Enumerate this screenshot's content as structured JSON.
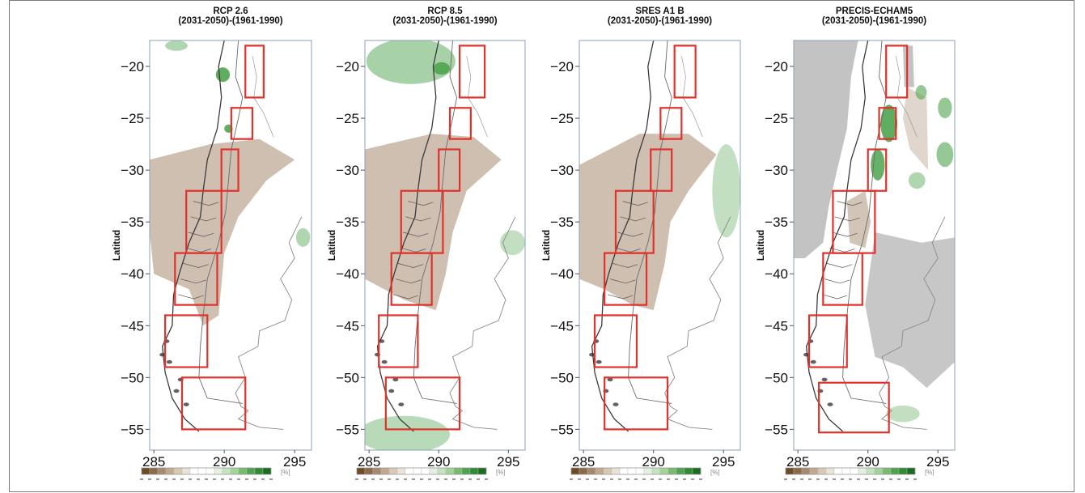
{
  "ylabel": "Latitud",
  "yticks": [
    -20,
    -25,
    -30,
    -35,
    -40,
    -45,
    -50,
    -55
  ],
  "xticks": [
    285,
    290,
    295
  ],
  "colorbar_unit": "[%]",
  "colors": {
    "dry": "#a58a6f",
    "wet": "#4fa34f",
    "box": "#e0312b",
    "land_outline": "#6b6b6b",
    "axis_frame": "#8aa0b8",
    "no_data": "#bdbdbd"
  },
  "colorbar_colors": [
    "#6e4a25",
    "#8a6a48",
    "#a58a6f",
    "#c0a98f",
    "#d8c8b6",
    "#ece3d8",
    "#ffffff",
    "#ffffff",
    "#ffffff",
    "#e4f1e0",
    "#c5e3bf",
    "#a3d29b",
    "#78bb70",
    "#4fa34f",
    "#2f8a33",
    "#1c6b22"
  ],
  "chart_data": [
    {
      "type": "heatmap",
      "title": "RCP 2.6",
      "subtitle": "(2031-2050)-(1961-1990)",
      "ylabel": "Latitud",
      "xlim": [
        284.7,
        296.2
      ],
      "ylim": [
        -57,
        -17.5
      ],
      "xticks": [
        285,
        290,
        295
      ],
      "yticks": [
        -20,
        -25,
        -30,
        -35,
        -40,
        -45,
        -50,
        -55
      ],
      "colorbar_unit": "[%]",
      "boxes": [
        {
          "lon": [
            291.5,
            292.8
          ],
          "lat": [
            -23,
            -18
          ]
        },
        {
          "lon": [
            290.5,
            292
          ],
          "lat": [
            -27,
            -24
          ]
        },
        {
          "lon": [
            289.8,
            291
          ],
          "lat": [
            -32,
            -28
          ]
        },
        {
          "lon": [
            287.3,
            289.8
          ],
          "lat": [
            -38,
            -32
          ]
        },
        {
          "lon": [
            286.5,
            289.5
          ],
          "lat": [
            -43,
            -38
          ]
        },
        {
          "lon": [
            285.8,
            288.8
          ],
          "lat": [
            -49,
            -44
          ]
        },
        {
          "lon": [
            287,
            291.5
          ],
          "lat": [
            -55,
            -50
          ]
        }
      ],
      "dry_regions": [
        {
          "points": [
            [
              284.7,
              -29
            ],
            [
              289,
              -27.5
            ],
            [
              292.5,
              -27
            ],
            [
              295,
              -29
            ],
            [
              293,
              -31
            ],
            [
              291,
              -34.5
            ],
            [
              290,
              -38
            ],
            [
              289.6,
              -44
            ],
            [
              288.5,
              -45
            ],
            [
              287.5,
              -41.5
            ],
            [
              285,
              -40
            ],
            [
              284.7,
              -36
            ]
          ],
          "opacity": 0.55
        }
      ],
      "wet_regions": [
        {
          "cx": 289.9,
          "cy": -20.8,
          "rx": 0.5,
          "ry": 0.7,
          "opacity": 0.9
        },
        {
          "cx": 290.3,
          "cy": -26,
          "rx": 0.3,
          "ry": 0.4,
          "opacity": 0.9
        },
        {
          "cx": 286.6,
          "cy": -18,
          "rx": 0.8,
          "ry": 0.5,
          "opacity": 0.45
        },
        {
          "cx": 295.6,
          "cy": -36.5,
          "rx": 0.5,
          "ry": 0.9,
          "opacity": 0.45
        }
      ],
      "gray_regions": []
    },
    {
      "type": "heatmap",
      "title": "RCP 8.5",
      "subtitle": "(2031-2050)-(1961-1990)",
      "ylabel": "Latitud",
      "xlim": [
        284.7,
        296.2
      ],
      "ylim": [
        -57,
        -17.5
      ],
      "xticks": [
        285,
        290,
        295
      ],
      "yticks": [
        -20,
        -25,
        -30,
        -35,
        -40,
        -45,
        -50,
        -55
      ],
      "colorbar_unit": "[%]",
      "boxes": [
        {
          "lon": [
            291.5,
            293.3
          ],
          "lat": [
            -23,
            -18
          ]
        },
        {
          "lon": [
            290.8,
            292.3
          ],
          "lat": [
            -27,
            -24
          ]
        },
        {
          "lon": [
            290,
            291.5
          ],
          "lat": [
            -32,
            -28
          ]
        },
        {
          "lon": [
            287.3,
            290.3
          ],
          "lat": [
            -38,
            -32
          ]
        },
        {
          "lon": [
            286.6,
            289.5
          ],
          "lat": [
            -43,
            -38
          ]
        },
        {
          "lon": [
            285.7,
            288.5
          ],
          "lat": [
            -49,
            -44
          ]
        },
        {
          "lon": [
            286.2,
            291.5
          ],
          "lat": [
            -55,
            -50
          ]
        }
      ],
      "dry_regions": [
        {
          "points": [
            [
              284.7,
              -28
            ],
            [
              289.5,
              -26.5
            ],
            [
              292.5,
              -26.8
            ],
            [
              294.5,
              -29
            ],
            [
              292,
              -32
            ],
            [
              291,
              -36
            ],
            [
              290.5,
              -40
            ],
            [
              289.8,
              -43.5
            ],
            [
              287.5,
              -42.5
            ],
            [
              284.7,
              -40.5
            ]
          ],
          "opacity": 0.55
        }
      ],
      "wet_regions": [
        {
          "cx": 288,
          "cy": -19.5,
          "rx": 3.2,
          "ry": 2.2,
          "opacity": 0.5
        },
        {
          "cx": 290.2,
          "cy": -20.2,
          "rx": 0.6,
          "ry": 0.6,
          "opacity": 0.9
        },
        {
          "cx": 287.5,
          "cy": -55.5,
          "rx": 3.3,
          "ry": 1.8,
          "opacity": 0.4
        },
        {
          "cx": 295.3,
          "cy": -37,
          "rx": 0.9,
          "ry": 1.2,
          "opacity": 0.35
        }
      ],
      "gray_regions": []
    },
    {
      "type": "heatmap",
      "title": "SRES A1 B",
      "subtitle": "(2031-2050)-(1961-1990)",
      "ylabel": "Latitud",
      "xlim": [
        284.7,
        296.2
      ],
      "ylim": [
        -57,
        -17.5
      ],
      "xticks": [
        285,
        290,
        295
      ],
      "yticks": [
        -20,
        -25,
        -30,
        -35,
        -40,
        -45,
        -50,
        -55
      ],
      "colorbar_unit": "[%]",
      "boxes": [
        {
          "lon": [
            291.5,
            293
          ],
          "lat": [
            -23,
            -18
          ]
        },
        {
          "lon": [
            290.5,
            292
          ],
          "lat": [
            -27,
            -24
          ]
        },
        {
          "lon": [
            289.8,
            291.3
          ],
          "lat": [
            -32,
            -28
          ]
        },
        {
          "lon": [
            287.3,
            290
          ],
          "lat": [
            -38,
            -32
          ]
        },
        {
          "lon": [
            286.5,
            289.5
          ],
          "lat": [
            -43,
            -38
          ]
        },
        {
          "lon": [
            285.8,
            288.8
          ],
          "lat": [
            -49,
            -44
          ]
        },
        {
          "lon": [
            286.5,
            291
          ],
          "lat": [
            -55,
            -50
          ]
        }
      ],
      "dry_regions": [
        {
          "points": [
            [
              284.7,
              -29.5
            ],
            [
              289,
              -26.5
            ],
            [
              292.5,
              -26.5
            ],
            [
              294.5,
              -28.5
            ],
            [
              292.5,
              -32
            ],
            [
              291.2,
              -35
            ],
            [
              290.8,
              -39
            ],
            [
              290,
              -43.5
            ],
            [
              288.5,
              -43
            ],
            [
              286.5,
              -41.5
            ],
            [
              284.7,
              -40.5
            ]
          ],
          "opacity": 0.55
        }
      ],
      "wet_regions": [
        {
          "cx": 295.2,
          "cy": -32,
          "rx": 1,
          "ry": 4.5,
          "opacity": 0.35
        }
      ],
      "gray_regions": []
    },
    {
      "type": "heatmap",
      "title": "PRECIS-ECHAM5",
      "subtitle": "(2031-2050)-(1961-1990)",
      "ylabel": "Latitud",
      "xlim": [
        284.7,
        296.2
      ],
      "ylim": [
        -57,
        -17.5
      ],
      "xticks": [
        285,
        290,
        295
      ],
      "yticks": [
        -20,
        -25,
        -30,
        -35,
        -40,
        -45,
        -50,
        -55
      ],
      "colorbar_unit": "[%]",
      "boxes": [
        {
          "lon": [
            291.3,
            292.8
          ],
          "lat": [
            -23,
            -18
          ]
        },
        {
          "lon": [
            290.8,
            292
          ],
          "lat": [
            -27,
            -24
          ]
        },
        {
          "lon": [
            290,
            291.3
          ],
          "lat": [
            -32,
            -28
          ]
        },
        {
          "lon": [
            287.5,
            290.5
          ],
          "lat": [
            -38,
            -32
          ]
        },
        {
          "lon": [
            286.8,
            289.6
          ],
          "lat": [
            -43,
            -38
          ]
        },
        {
          "lon": [
            285.8,
            288.5
          ],
          "lat": [
            -49,
            -44
          ]
        },
        {
          "lon": [
            286.5,
            291.5
          ],
          "lat": [
            -55.3,
            -50.5
          ]
        }
      ],
      "dry_regions": [
        {
          "points": [
            [
              288.5,
              -33
            ],
            [
              289.8,
              -32
            ],
            [
              290.2,
              -35
            ],
            [
              289.8,
              -37.5
            ],
            [
              288.7,
              -37
            ]
          ],
          "opacity": 0.5
        },
        {
          "points": [
            [
              292.8,
              -22
            ],
            [
              294.2,
              -23
            ],
            [
              294.3,
              -30
            ],
            [
              293,
              -28
            ],
            [
              292.5,
              -25
            ]
          ],
          "opacity": 0.35
        }
      ],
      "wet_regions": [
        {
          "cx": 291.5,
          "cy": -25.5,
          "rx": 0.6,
          "ry": 1.8,
          "opacity": 0.9
        },
        {
          "cx": 290.7,
          "cy": -29.5,
          "rx": 0.5,
          "ry": 1.5,
          "opacity": 0.85
        },
        {
          "cx": 293.8,
          "cy": -22.5,
          "rx": 0.4,
          "ry": 0.7,
          "opacity": 0.6
        },
        {
          "cx": 295.5,
          "cy": -24,
          "rx": 0.5,
          "ry": 1,
          "opacity": 0.6
        },
        {
          "cx": 295.5,
          "cy": -28.5,
          "rx": 0.6,
          "ry": 1.2,
          "opacity": 0.6
        },
        {
          "cx": 293.5,
          "cy": -31,
          "rx": 0.6,
          "ry": 0.8,
          "opacity": 0.45
        },
        {
          "cx": 292.5,
          "cy": -53.5,
          "rx": 1.2,
          "ry": 0.8,
          "opacity": 0.35
        }
      ],
      "gray_regions": [
        {
          "points": [
            [
              284.7,
              -17.5
            ],
            [
              289.3,
              -17.5
            ],
            [
              288.8,
              -21
            ],
            [
              288.5,
              -26
            ],
            [
              287.8,
              -30
            ],
            [
              287.2,
              -33.5
            ],
            [
              286.8,
              -37
            ],
            [
              285.5,
              -38.5
            ],
            [
              284.7,
              -38.5
            ]
          ],
          "opacity": 0.9
        },
        {
          "points": [
            [
              292.5,
              -18
            ],
            [
              293.2,
              -18
            ],
            [
              293.3,
              -22
            ],
            [
              292.6,
              -22
            ]
          ],
          "opacity": 0.9
        },
        {
          "points": [
            [
              290.5,
              -36
            ],
            [
              293.8,
              -37
            ],
            [
              296.2,
              -36.5
            ],
            [
              296.2,
              -48.5
            ],
            [
              294.2,
              -51
            ],
            [
              292.5,
              -49
            ],
            [
              290.5,
              -48
            ],
            [
              289.8,
              -43
            ]
          ],
          "opacity": 0.85
        }
      ]
    }
  ]
}
